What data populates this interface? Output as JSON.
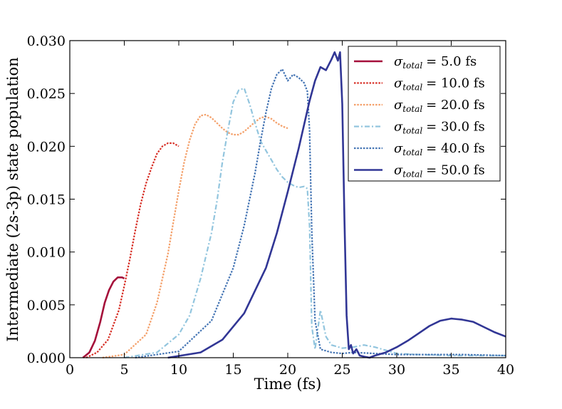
{
  "chart_data": {
    "type": "line",
    "title": "",
    "xlabel": "Time (fs)",
    "ylabel": "Intermediate (2s-3p) state population",
    "xlim": [
      0,
      40
    ],
    "ylim": [
      0,
      0.03
    ],
    "xticks": [
      0,
      5,
      10,
      15,
      20,
      25,
      30,
      35,
      40
    ],
    "xtick_labels": [
      "0",
      "5",
      "10",
      "15",
      "20",
      "25",
      "30",
      "35",
      "40"
    ],
    "yticks": [
      0,
      0.005,
      0.01,
      0.015,
      0.02,
      0.025,
      0.03
    ],
    "ytick_labels": [
      "0.000",
      "0.005",
      "0.010",
      "0.015",
      "0.020",
      "0.025",
      "0.030"
    ],
    "grid": false,
    "legend_position": "top-right",
    "legend_symbol": "σ",
    "legend_subscript": "total",
    "series": [
      {
        "name": "σtotal = 5.0 fs",
        "value_label": "= 5.0 fs",
        "color": "#a50f3a",
        "style": "solid",
        "x": [
          1.2,
          1.8,
          2.3,
          2.8,
          3.2,
          3.6,
          4.0,
          4.4,
          4.8,
          5.0
        ],
        "y": [
          0.0,
          0.0005,
          0.0016,
          0.0034,
          0.0052,
          0.0064,
          0.0072,
          0.0076,
          0.0076,
          0.0075
        ]
      },
      {
        "name": "σtotal = 10.0 fs",
        "value_label": "= 10.0 fs",
        "color": "#d73027",
        "style": "dotted",
        "x": [
          1.5,
          2.5,
          3.5,
          4.5,
          5.0,
          5.5,
          6.0,
          6.5,
          7.0,
          7.5,
          8.0,
          8.5,
          9.0,
          9.5,
          10.0
        ],
        "y": [
          0.0,
          0.0005,
          0.0017,
          0.0045,
          0.0068,
          0.0093,
          0.012,
          0.0145,
          0.0165,
          0.018,
          0.0193,
          0.02,
          0.0203,
          0.0203,
          0.02
        ]
      },
      {
        "name": "σtotal = 20.0 fs",
        "value_label": "= 20.0 fs",
        "color": "#f4a06a",
        "style": "dotted",
        "x": [
          3.0,
          5.0,
          7.0,
          8.0,
          9.0,
          9.5,
          10.0,
          10.5,
          11.0,
          11.5,
          12.0,
          12.5,
          13.0,
          13.5,
          14.0,
          14.5,
          15.0,
          15.5,
          16.0,
          17.0,
          17.5,
          18.0,
          18.5,
          19.0,
          19.5,
          20.0
        ],
        "y": [
          0.0,
          0.0003,
          0.0022,
          0.0052,
          0.0098,
          0.0128,
          0.0158,
          0.0185,
          0.0206,
          0.0221,
          0.0229,
          0.023,
          0.0227,
          0.0222,
          0.0217,
          0.0213,
          0.0211,
          0.0211,
          0.0214,
          0.0223,
          0.0227,
          0.0228,
          0.0226,
          0.0222,
          0.0219,
          0.0217
        ]
      },
      {
        "name": "σtotal = 30.0 fs",
        "value_label": "= 30.0 fs",
        "color": "#92c5de",
        "style": "dashdot",
        "x": [
          5.0,
          8.0,
          10.0,
          11.0,
          12.0,
          13.0,
          13.5,
          14.0,
          14.5,
          15.0,
          15.5,
          16.0,
          16.5,
          17.0,
          17.5,
          18.0,
          18.5,
          19.0,
          19.5,
          20.0,
          20.5,
          21.0,
          21.5,
          21.8,
          22.0,
          22.2,
          22.5,
          23.0,
          23.5,
          24.0,
          25.0,
          26.0,
          27.0,
          28.0,
          29.0,
          30.0,
          32.0,
          35.0,
          40.0
        ],
        "y": [
          0.0,
          0.0005,
          0.0022,
          0.004,
          0.0075,
          0.0118,
          0.0148,
          0.0185,
          0.0215,
          0.0242,
          0.0253,
          0.0255,
          0.024,
          0.0222,
          0.0205,
          0.0196,
          0.0187,
          0.0178,
          0.0171,
          0.0166,
          0.0163,
          0.0161,
          0.0162,
          0.016,
          0.0125,
          0.003,
          0.0008,
          0.0045,
          0.002,
          0.0012,
          0.0009,
          0.001,
          0.0012,
          0.001,
          0.0007,
          0.0004,
          0.0003,
          0.0002,
          0.0002
        ]
      },
      {
        "name": "σtotal = 40.0 fs",
        "value_label": "= 40.0 fs",
        "color": "#4575b4",
        "style": "dotted",
        "x": [
          6.0,
          10.0,
          13.0,
          15.0,
          16.0,
          17.0,
          17.5,
          18.0,
          18.5,
          19.0,
          19.5,
          20.0,
          20.5,
          21.0,
          21.5,
          21.8,
          22.0,
          22.2,
          22.5,
          23.0,
          24.0,
          25.0,
          26.0,
          28.0,
          30.0,
          33.0,
          36.0,
          40.0
        ],
        "y": [
          0.0,
          0.0006,
          0.0035,
          0.0085,
          0.0125,
          0.0175,
          0.0205,
          0.0232,
          0.0255,
          0.0268,
          0.0273,
          0.0262,
          0.0268,
          0.0265,
          0.026,
          0.0252,
          0.0215,
          0.012,
          0.0035,
          0.0008,
          0.0005,
          0.0004,
          0.0005,
          0.0004,
          0.0003,
          0.0003,
          0.0003,
          0.0002
        ]
      },
      {
        "name": "σtotal = 50.0 fs",
        "value_label": "= 50.0 fs",
        "color": "#313695",
        "style": "solid",
        "x": [
          9.0,
          12.0,
          14.0,
          16.0,
          18.0,
          19.0,
          20.0,
          21.0,
          22.0,
          22.5,
          23.0,
          23.5,
          24.0,
          24.3,
          24.6,
          24.8,
          25.0,
          25.2,
          25.4,
          25.6,
          25.8,
          26.0,
          26.3,
          26.6,
          27.0,
          27.5,
          28.0,
          29.0,
          30.0,
          31.0,
          32.0,
          33.0,
          34.0,
          35.0,
          36.0,
          37.0,
          38.0,
          39.0,
          40.0
        ],
        "y": [
          0.0,
          0.0005,
          0.0017,
          0.0042,
          0.0085,
          0.0118,
          0.0157,
          0.0198,
          0.0243,
          0.0262,
          0.0275,
          0.0272,
          0.0282,
          0.0289,
          0.0281,
          0.0289,
          0.024,
          0.013,
          0.004,
          0.0008,
          0.0012,
          0.0004,
          0.0008,
          0.0002,
          0.0001,
          0.0,
          0.0002,
          0.0005,
          0.001,
          0.0016,
          0.0023,
          0.003,
          0.0035,
          0.0037,
          0.0036,
          0.0034,
          0.0029,
          0.0024,
          0.002
        ]
      }
    ]
  }
}
